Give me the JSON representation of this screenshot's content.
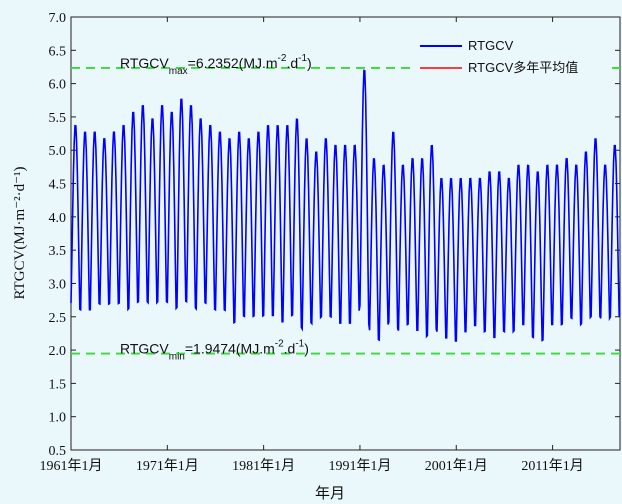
{
  "chart_data": {
    "type": "line",
    "ylabel": "RTGCV(MJ·m⁻²·d⁻¹)",
    "xlabel": "年月",
    "ylim": [
      0.5,
      7.0
    ],
    "yticks": [
      "7.0",
      "6.5",
      "6.0",
      "5.5",
      "5.0",
      "4.5",
      "4.0",
      "3.5",
      "3.0",
      "2.5",
      "2.0",
      "1.5",
      "1.0",
      "0.5"
    ],
    "xlim": [
      1961.0,
      2018.0
    ],
    "xtick_labels": [
      "1961年1月",
      "1971年1月",
      "1981年1月",
      "1991年1月",
      "2001年1月",
      "2011年1月"
    ],
    "xtick_values": [
      1961,
      1971,
      1981,
      1991,
      2001,
      2011
    ],
    "grid": false,
    "legend_position": "top-right",
    "series": [
      {
        "name": "RTGCV",
        "color": "#0000ff",
        "start_year": 1961,
        "annual_max": [
          5.4,
          5.3,
          5.3,
          5.2,
          5.3,
          5.4,
          5.6,
          5.7,
          5.5,
          5.7,
          5.6,
          5.8,
          5.7,
          5.5,
          5.4,
          5.3,
          5.2,
          5.3,
          5.2,
          5.3,
          5.4,
          5.4,
          5.4,
          5.5,
          5.2,
          5.0,
          5.2,
          5.1,
          5.1,
          5.1,
          6.24,
          4.9,
          4.8,
          5.3,
          4.8,
          4.9,
          4.9,
          5.1,
          4.6,
          4.6,
          4.6,
          4.6,
          4.6,
          4.7,
          4.7,
          4.6,
          4.8,
          4.8,
          4.7,
          4.8,
          4.8,
          4.9,
          4.8,
          5.0,
          5.2,
          4.8,
          5.1
        ],
        "annual_min": [
          2.5,
          2.4,
          2.4,
          2.5,
          2.5,
          2.5,
          2.4,
          2.5,
          2.5,
          2.5,
          2.5,
          2.4,
          2.5,
          2.4,
          2.5,
          2.4,
          2.4,
          2.2,
          2.3,
          2.3,
          2.3,
          2.3,
          2.2,
          2.3,
          2.1,
          2.2,
          2.3,
          2.3,
          2.2,
          2.2,
          2.4,
          2.1,
          1.95,
          2.2,
          2.1,
          2.2,
          2.1,
          2.0,
          2.1,
          2.0,
          1.95,
          2.1,
          2.2,
          2.1,
          2.0,
          2.1,
          2.1,
          2.2,
          2.0,
          1.95,
          2.2,
          2.2,
          2.3,
          2.2,
          2.3,
          2.3,
          2.3
        ]
      },
      {
        "name": "RTGCV多年平均值",
        "color": "#ff0000"
      }
    ],
    "reference_lines": [
      {
        "y": 6.2352,
        "color": "#33dd33",
        "label_main": "RTGCV",
        "label_sub": "max",
        "label_rest": "=6.2352(MJ.m",
        "label_sup1": "-2",
        "label_mid": ".d",
        "label_sup2": "-1",
        "label_end": ")"
      },
      {
        "y": 1.9474,
        "color": "#33dd33",
        "label_main": "RTGCV",
        "label_sub": "min",
        "label_rest": "=1.9474(MJ.m",
        "label_sup1": "-2",
        "label_mid": ".d",
        "label_sup2": "-1",
        "label_end": ")"
      }
    ]
  }
}
